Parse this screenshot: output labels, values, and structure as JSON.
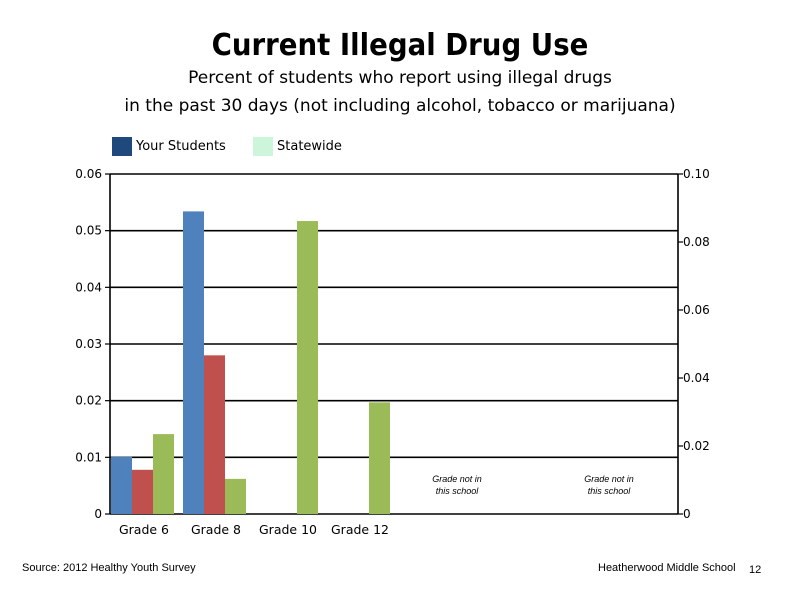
{
  "chart_data": {
    "type": "bar",
    "title": "Current Illegal Drug Use",
    "subtitle_line1": "Percent of students who report using illegal drugs",
    "subtitle_line2": "in the past 30 days (not including alcohol, tobacco or marijuana)",
    "categories": [
      "Grade 6",
      "Grade 8",
      "Grade 10",
      "Grade 12"
    ],
    "series": [
      {
        "name": "Your Students",
        "color": "#4f81bd",
        "values": [
          0.0101,
          0.0534,
          null,
          null
        ]
      },
      {
        "name": "",
        "color": "#c0504d",
        "values": [
          0.0078,
          0.028,
          null,
          null
        ]
      },
      {
        "name": "Statewide",
        "color": "#9bbb59",
        "values": [
          0.0141,
          0.0062,
          0.0517,
          0.0197
        ]
      }
    ],
    "legend": [
      {
        "label": "Your Students",
        "color": "#1f497d"
      },
      {
        "label": "Statewide",
        "color": "#ccf5dc"
      }
    ],
    "left_axis": {
      "ylim": [
        0,
        0.06
      ],
      "ticks": [
        "0",
        "0.01",
        "0.02",
        "0.03",
        "0.04",
        "0.05",
        "0.06"
      ]
    },
    "right_axis": {
      "ylim": [
        0,
        0.1
      ],
      "ticks": [
        "0",
        "0.02",
        "0.04",
        "0.06",
        "0.08",
        "0.10"
      ]
    },
    "grid": true,
    "annotations": [
      "Grade not in this school",
      "Grade not in this school"
    ]
  },
  "footer": {
    "source": "Source: 2012 Healthy Youth Survey",
    "school": "Heatherwood Middle  School",
    "page": "12"
  }
}
